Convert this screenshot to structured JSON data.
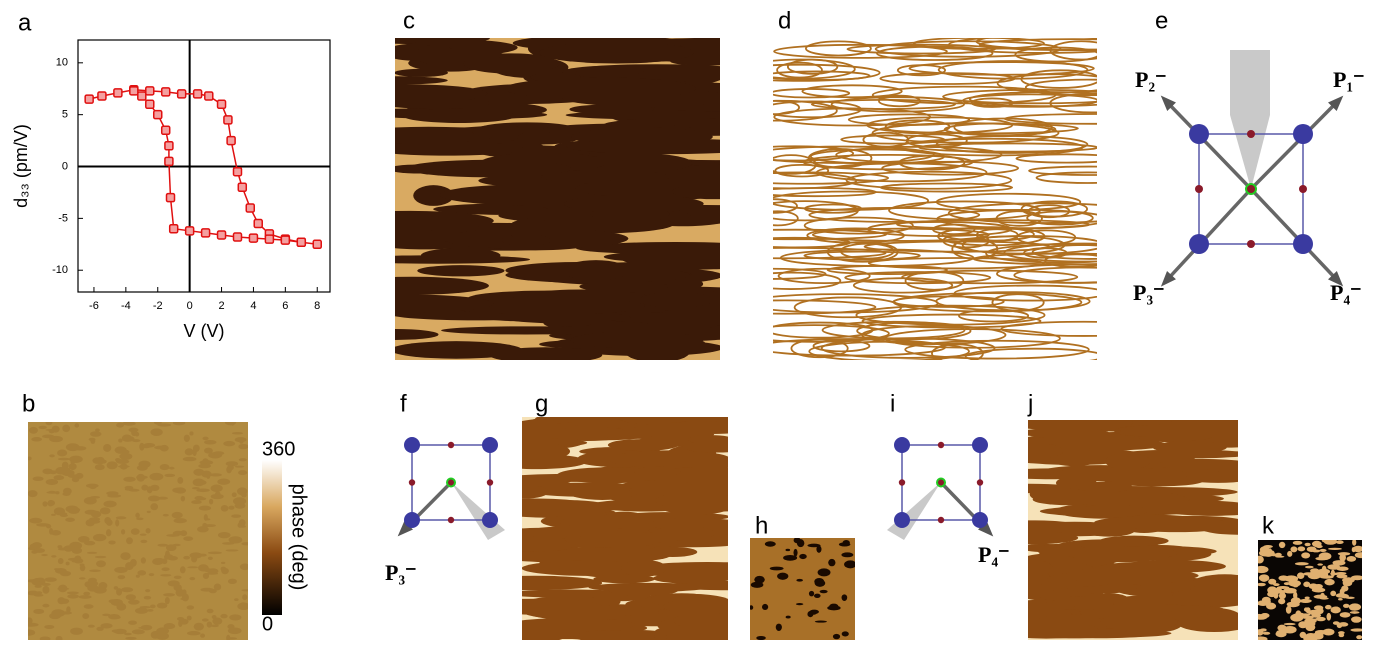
{
  "chart_data": {
    "type": "line",
    "x": [
      -6.3,
      -5.5,
      -4.5,
      -3.5,
      -2.5,
      -1.5,
      -0.5,
      0.5,
      1.2,
      2,
      2.4,
      2.6,
      3,
      3.3,
      3.8,
      4.3,
      5,
      6,
      7,
      8,
      7,
      6,
      5,
      4,
      3,
      2,
      1,
      0,
      -1,
      -1.2,
      -1.3,
      -1.3,
      -1.5,
      -2,
      -2.5,
      -3,
      -3.5
    ],
    "values": [
      6.5,
      6.8,
      7.1,
      7.4,
      7.3,
      7.2,
      7.0,
      7.0,
      6.8,
      6,
      4.5,
      2.5,
      -0.5,
      -2,
      -4,
      -5.5,
      -6.5,
      -7,
      -7.3,
      -7.5,
      -7.3,
      -7.1,
      -7,
      -6.9,
      -6.8,
      -6.6,
      -6.4,
      -6.2,
      -6,
      -3,
      0.5,
      2,
      3.5,
      5,
      6,
      6.8,
      7.3
    ],
    "color": "#e01010",
    "xlabel": "V (V)",
    "ylabel": "d₃₃ (pm/V)",
    "xlim": [
      -7,
      8.8
    ],
    "xticks": [
      -6,
      -4,
      -2,
      0,
      2,
      4,
      6,
      8
    ],
    "ylim": [
      -12.1,
      12.2
    ],
    "yticks": [
      -10,
      -5,
      0,
      5,
      10
    ]
  },
  "panel_labels": [
    "a",
    "b",
    "c",
    "d",
    "e",
    "f",
    "g",
    "h",
    "i",
    "j",
    "k"
  ],
  "colorbar": {
    "label": "phase (deg)",
    "lim": [
      0,
      360
    ],
    "ticks": [
      0,
      360
    ]
  },
  "panel_e": {
    "labels": [
      "P₁⁻",
      "P₂⁻",
      "P₃⁻",
      "P₄⁻"
    ]
  },
  "panel_f": {
    "label": "P₃⁻"
  },
  "panel_i": {
    "label": "P₄⁻"
  }
}
